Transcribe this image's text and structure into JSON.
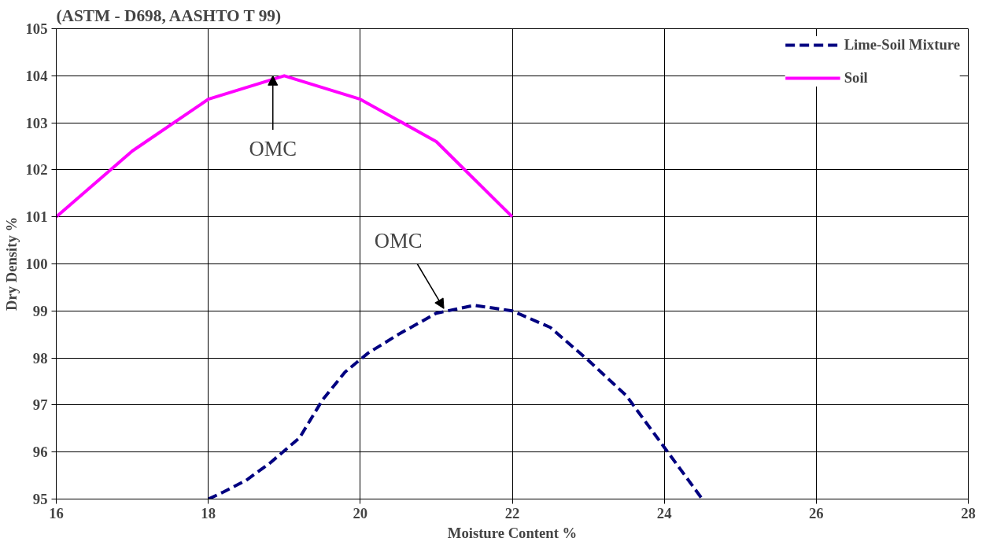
{
  "chart_data": {
    "type": "line",
    "title": "(ASTM - D698, AASHTO T 99)",
    "xlabel": "Moisture Content %",
    "ylabel": "Dry Density %",
    "xlim": [
      16,
      28
    ],
    "xticks": [
      16,
      18,
      20,
      22,
      24,
      26,
      28
    ],
    "ylim": [
      95,
      105
    ],
    "yticks": [
      95,
      96,
      97,
      98,
      99,
      100,
      101,
      102,
      103,
      104,
      105
    ],
    "grid": true,
    "legend": "top right",
    "marker": "none",
    "series": [
      {
        "name": "Lime-Soil Mixture",
        "color": "#000080",
        "line_style": "dashed",
        "x": [
          18,
          18.2,
          18.5,
          18.8,
          19.2,
          19.5,
          19.8,
          20.1,
          20.5,
          21,
          21.5,
          22,
          22.5,
          23,
          23.5,
          24,
          24.5
        ],
        "values": [
          95,
          95.15,
          95.4,
          95.75,
          96.3,
          97.1,
          97.7,
          98.1,
          98.5,
          98.95,
          99.12,
          99.0,
          98.65,
          97.95,
          97.2,
          96.1,
          95.0
        ]
      },
      {
        "name": "Soil",
        "color": "#ff00ff",
        "line_style": "solid",
        "x": [
          16,
          17,
          18,
          19,
          20,
          21,
          22
        ],
        "values": [
          101,
          102.4,
          103.5,
          104,
          103.5,
          102.6,
          101
        ]
      }
    ],
    "annotations": [
      {
        "text": "OMC",
        "x": 18.85,
        "y": 104
      },
      {
        "text": "OMC",
        "x": 21.1,
        "y": 99.05
      }
    ]
  }
}
